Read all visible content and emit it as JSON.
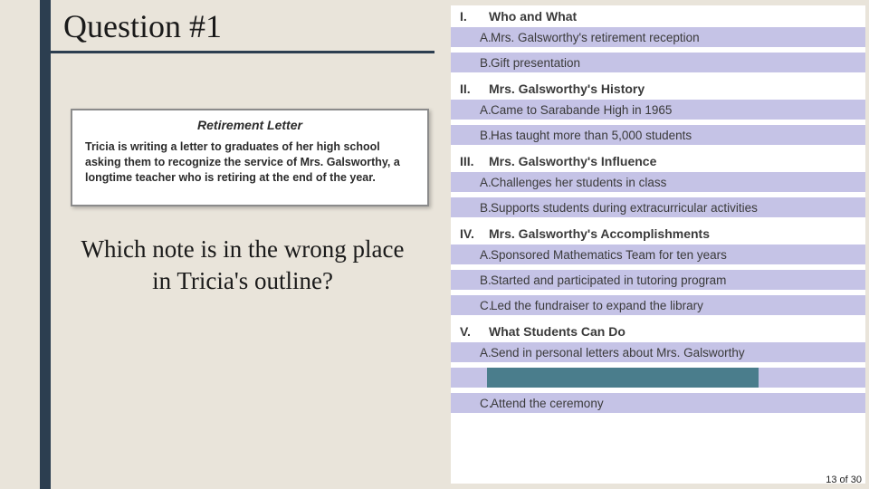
{
  "colors": {
    "slide_bg": "#e9e4da",
    "accent": "#2c3e50",
    "prompt_bg": "#ffffff",
    "prompt_border": "#8b8b8b",
    "outline_bg": "#ffffff",
    "sub_bg": "#c5c3e6",
    "redact_bg": "#4a7d8c",
    "text": "#1a1a1a",
    "outline_text": "#3a3a3a"
  },
  "typography": {
    "title_fontsize": 36,
    "question_fontsize": 27,
    "section_head_fontsize": 14,
    "sub_fontsize": 13.5,
    "prompt_title_fontsize": 14,
    "prompt_body_fontsize": 12.5
  },
  "title": "Question #1",
  "prompt": {
    "heading": "Retirement Letter",
    "body": "Tricia is writing a letter to graduates of her high school asking them to recognize the service of Mrs. Galsworthy, a longtime teacher who is retiring at the end of the year."
  },
  "question": "Which note is in the wrong place in Tricia's outline?",
  "outline": {
    "sections": [
      {
        "roman": "I.",
        "title": "Who and What",
        "items": [
          {
            "letter": "A.",
            "text": "Mrs. Galsworthy's retirement reception"
          },
          {
            "letter": "B.",
            "text": "Gift presentation"
          }
        ]
      },
      {
        "roman": "II.",
        "title": "Mrs. Galsworthy's History",
        "items": [
          {
            "letter": "A.",
            "text": "Came to Sarabande High in 1965"
          },
          {
            "letter": "B.",
            "text": "Has taught more than 5,000 students"
          }
        ]
      },
      {
        "roman": "III.",
        "title": "Mrs. Galsworthy's Influence",
        "items": [
          {
            "letter": "A.",
            "text": "Challenges her students in class"
          },
          {
            "letter": "B.",
            "text": "Supports students during extracurricular activities"
          }
        ]
      },
      {
        "roman": "IV.",
        "title": "Mrs. Galsworthy's Accomplishments",
        "items": [
          {
            "letter": "A.",
            "text": "Sponsored Mathematics Team for ten years"
          },
          {
            "letter": "B.",
            "text": "Started and participated in tutoring program"
          },
          {
            "letter": "C.",
            "text": "Led the fundraiser to expand the library"
          }
        ]
      },
      {
        "roman": "V.",
        "title": "What Students Can Do",
        "items": [
          {
            "letter": "A.",
            "text": "Send in personal letters about Mrs. Galsworthy"
          },
          {
            "letter": "",
            "text": "",
            "redacted": true
          },
          {
            "letter": "C.",
            "text": "Attend the ceremony"
          }
        ]
      }
    ]
  },
  "page_indicator": "13 of 30"
}
